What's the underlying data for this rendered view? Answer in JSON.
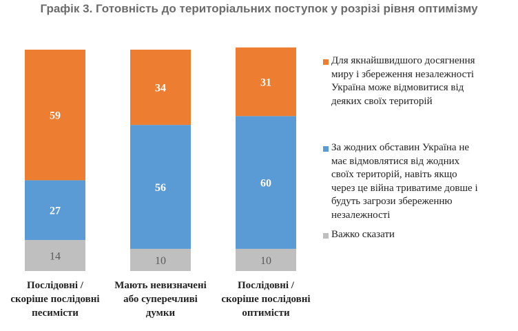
{
  "chart_data": {
    "type": "bar",
    "stacked": true,
    "title": "Графік 3. Готовність до територіальних поступок у розрізі рівня оптимізму",
    "categories": [
      "Послідовні /\nскоріше послідовні\nпесимісти",
      "Мають невизначені\nабо суперечливі\nдумки",
      "Послідовні /\nскоріше послідовні\nоптимісти"
    ],
    "series": [
      {
        "name": "Важко сказати",
        "color": "#bfbfbf",
        "values": [
          14,
          10,
          10
        ]
      },
      {
        "name": "За жодних обставин Україна не\nмає відмовлятися від жодних\nсвоїх територій, навіть якщо\nчерез це війна триватиме довше і\nбудуть загрози збереженню\nнезалежності",
        "color": "#5b9bd5",
        "values": [
          27,
          56,
          60
        ]
      },
      {
        "name": "Для якнайшвидшого досягнення\nмиру і збереження незалежності\nУкраїна може відмовитися від\nдеяких своїх територій",
        "color": "#ed7d31",
        "values": [
          59,
          34,
          31
        ]
      }
    ],
    "ylim": [
      0,
      100
    ],
    "legend_position": "right",
    "legend_order": [
      2,
      1,
      0
    ]
  }
}
